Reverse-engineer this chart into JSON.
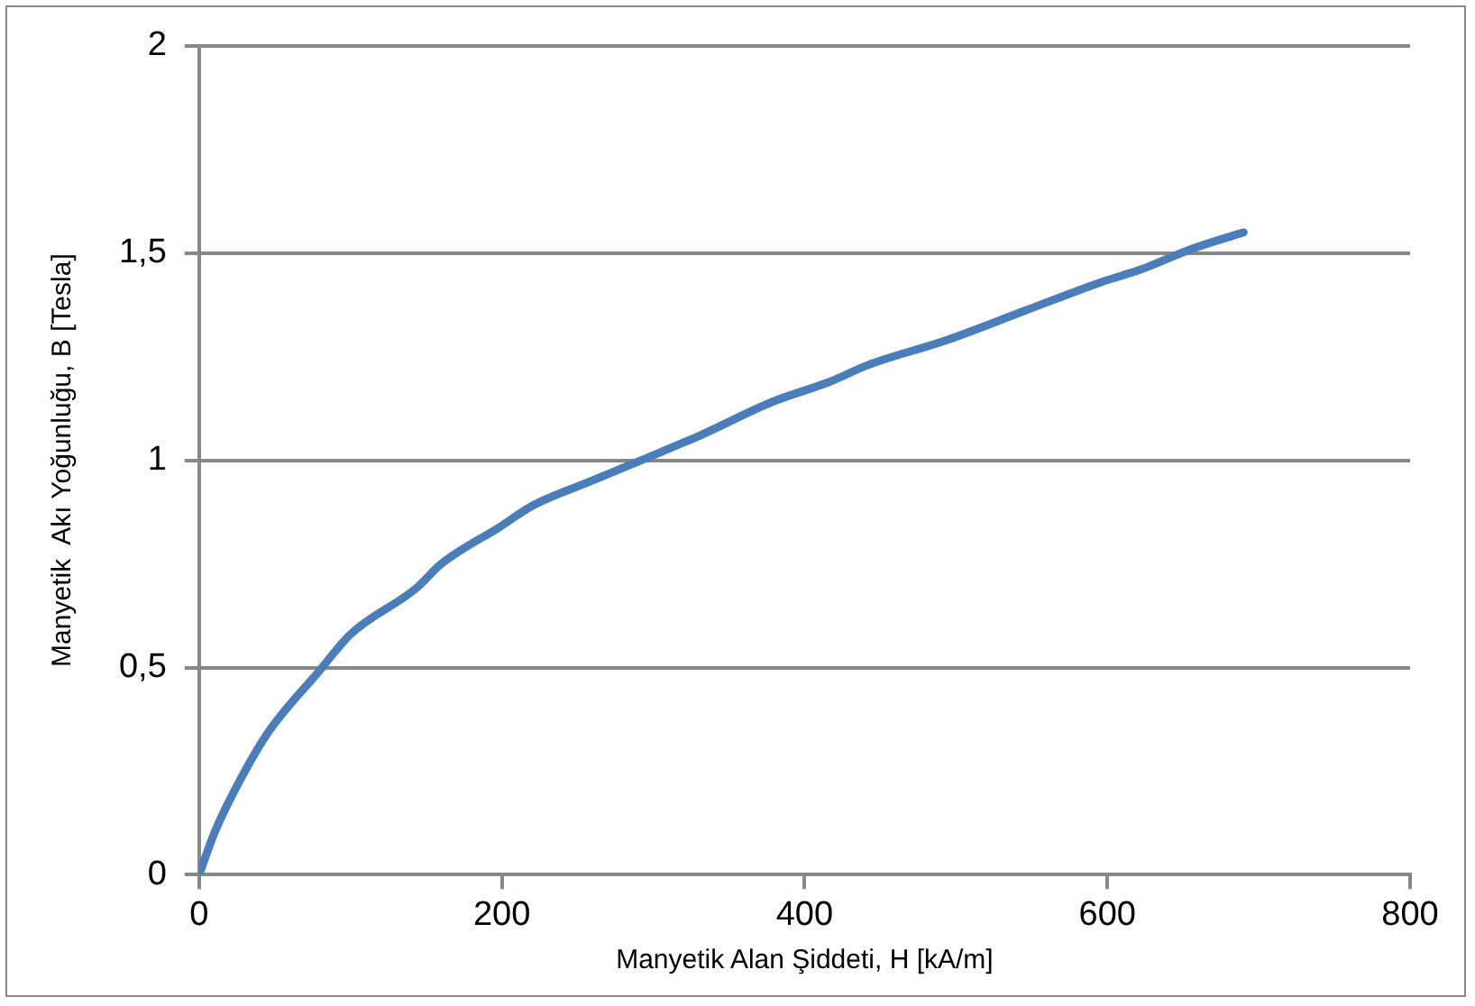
{
  "chart_data": {
    "type": "line",
    "xlabel": "Manyetik Alan Şiddeti, H [kA/m]",
    "ylabel": "Manyetik  Akı Yoğunluğu, B [Tesla]",
    "x": [
      0,
      10,
      23,
      45,
      79,
      100,
      143,
      160,
      199,
      220,
      259,
      292,
      331,
      378,
      417,
      442,
      494,
      545,
      596,
      622,
      656,
      690
    ],
    "series": [
      {
        "color": "#4a7ebb",
        "values": [
          0,
          0.1,
          0.2,
          0.34,
          0.49,
          0.58,
          0.69,
          0.75,
          0.84,
          0.89,
          0.95,
          1.0,
          1.06,
          1.14,
          1.19,
          1.23,
          1.29,
          1.36,
          1.43,
          1.46,
          1.51,
          1.55
        ]
      }
    ],
    "xlim": [
      0,
      800
    ],
    "xticks": [
      0,
      200,
      400,
      600,
      800
    ],
    "ylim": [
      0,
      2
    ],
    "yticks": [
      0,
      {
        "value": 0.5,
        "label": "0,5"
      },
      1,
      {
        "value": 1.5,
        "label": "1,5"
      },
      2
    ],
    "grid": "y",
    "legend": false,
    "marker": "none",
    "line_style": "solid"
  }
}
